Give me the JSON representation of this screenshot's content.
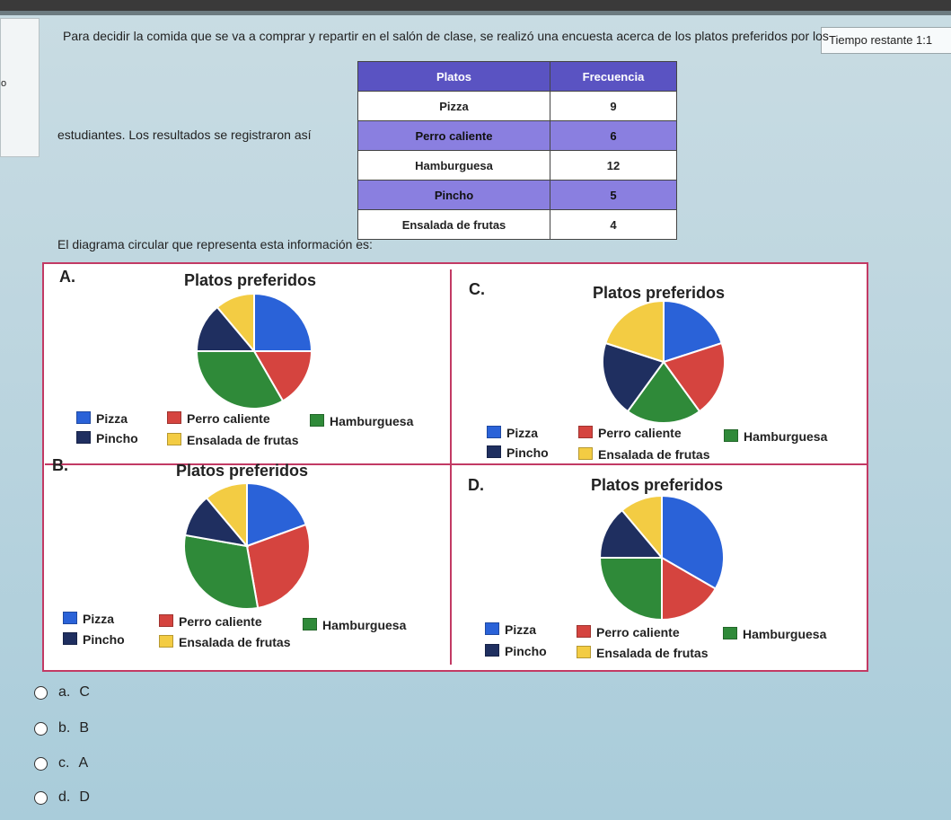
{
  "timer": {
    "label": "Tiempo restante 1:1"
  },
  "left_panel": {
    "fragment": "o"
  },
  "question": {
    "line1": "Para decidir la comida que se va a comprar y repartir en el salón de clase, se realizó una encuesta acerca de los platos preferidos por los",
    "line2": "estudiantes. Los resultados se registraron así",
    "line3": "El diagrama circular que representa esta información es:"
  },
  "table": {
    "headers": [
      "Platos",
      "Frecuencia"
    ],
    "rows": [
      {
        "plato": "Pizza",
        "frecuencia": "9"
      },
      {
        "plato": "Perro caliente",
        "frecuencia": "6"
      },
      {
        "plato": "Hamburguesa",
        "frecuencia": "12"
      },
      {
        "plato": "Pincho",
        "frecuencia": "5"
      },
      {
        "plato": "Ensalada de frutas",
        "frecuencia": "4"
      }
    ]
  },
  "colors": {
    "pizza": "#2a62d8",
    "perro": "#d5443f",
    "hamburguesa": "#2f8a39",
    "pincho": "#1f2f60",
    "ensalada": "#f3cc43"
  },
  "legend": {
    "pizza": "Pizza",
    "perro": "Perro caliente",
    "hamburguesa": "Hamburguesa",
    "pincho": "Pincho",
    "ensalada": "Ensalada de frutas"
  },
  "chart_data": [
    {
      "type": "pie",
      "option": "A.",
      "title": "Platos preferidos",
      "categories": [
        "Pizza",
        "Perro caliente",
        "Hamburguesa",
        "Pincho",
        "Ensalada de frutas"
      ],
      "values": [
        9,
        6,
        12,
        5,
        4
      ]
    },
    {
      "type": "pie",
      "option": "C.",
      "title": "Platos preferidos",
      "categories": [
        "Pizza",
        "Perro caliente",
        "Hamburguesa",
        "Pincho",
        "Ensalada de frutas"
      ],
      "values": [
        6,
        6,
        6,
        6,
        6
      ]
    },
    {
      "type": "pie",
      "option": "B.",
      "title": "Platos preferidos",
      "categories": [
        "Pizza",
        "Perro caliente",
        "Hamburguesa",
        "Pincho",
        "Ensalada de frutas"
      ],
      "values": [
        7,
        10,
        11,
        4,
        4
      ]
    },
    {
      "type": "pie",
      "option": "D.",
      "title": "Platos preferidos",
      "categories": [
        "Pizza",
        "Perro caliente",
        "Hamburguesa",
        "Pincho",
        "Ensalada de frutas"
      ],
      "values": [
        12,
        6,
        9,
        5,
        4
      ]
    }
  ],
  "answers": [
    {
      "letter": "a.",
      "value": "C"
    },
    {
      "letter": "b.",
      "value": "B"
    },
    {
      "letter": "c.",
      "value": "A"
    },
    {
      "letter": "d.",
      "value": "D"
    }
  ]
}
